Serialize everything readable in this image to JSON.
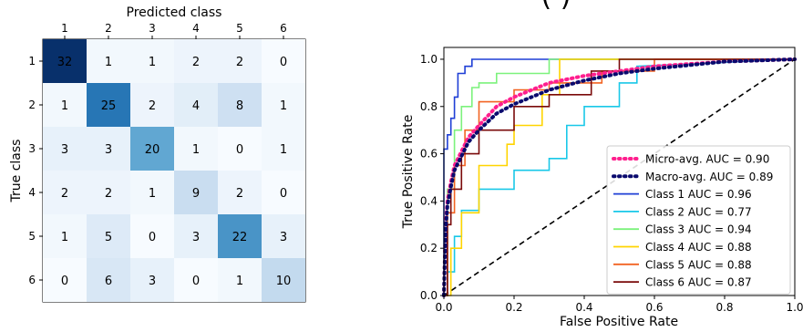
{
  "top_partial_title": "(                    )",
  "chart_data": [
    {
      "type": "heatmap",
      "title": "Predicted class",
      "xlabel": "Predicted class",
      "ylabel": "True class",
      "x_ticks": [
        "1",
        "2",
        "3",
        "4",
        "5",
        "6"
      ],
      "y_ticks": [
        "1",
        "2",
        "3",
        "4",
        "5",
        "6"
      ],
      "colormap": "Blues",
      "matrix": [
        [
          32,
          1,
          1,
          2,
          2,
          0
        ],
        [
          1,
          25,
          2,
          4,
          8,
          1
        ],
        [
          3,
          3,
          20,
          1,
          0,
          1
        ],
        [
          2,
          2,
          1,
          9,
          2,
          0
        ],
        [
          1,
          5,
          0,
          3,
          22,
          3
        ],
        [
          0,
          6,
          3,
          0,
          1,
          10
        ]
      ],
      "vmax": 32
    },
    {
      "type": "line",
      "xlabel": "False Positive Rate",
      "ylabel": "True Positive Rate",
      "xlim": [
        0.0,
        1.0
      ],
      "ylim": [
        0.0,
        1.05
      ],
      "x_ticks": [
        "0.0",
        "0.2",
        "0.4",
        "0.6",
        "0.8",
        "1.0"
      ],
      "y_ticks": [
        "0.0",
        "0.2",
        "0.4",
        "0.6",
        "0.8",
        "1.0"
      ],
      "legend_position": "lower-right",
      "chance_line": {
        "x": [
          0,
          1
        ],
        "y": [
          0,
          1
        ],
        "color": "#000000",
        "dash": "dashed"
      },
      "series": [
        {
          "name": "Micro-avg. AUC = 0.90",
          "color": "#ff1f8e",
          "style": "dotted-thick",
          "x": [
            0,
            0.005,
            0.01,
            0.02,
            0.03,
            0.05,
            0.07,
            0.1,
            0.15,
            0.2,
            0.25,
            0.3,
            0.4,
            0.5,
            0.6,
            0.8,
            1.0
          ],
          "y": [
            0,
            0.3,
            0.4,
            0.48,
            0.55,
            0.61,
            0.67,
            0.72,
            0.8,
            0.84,
            0.87,
            0.9,
            0.93,
            0.95,
            0.97,
            0.99,
            1.0
          ]
        },
        {
          "name": "Macro-avg. AUC = 0.89",
          "color": "#0a0a6e",
          "style": "dotted-thick",
          "x": [
            0,
            0.005,
            0.01,
            0.02,
            0.03,
            0.05,
            0.07,
            0.1,
            0.15,
            0.2,
            0.25,
            0.3,
            0.4,
            0.5,
            0.6,
            0.8,
            1.0
          ],
          "y": [
            0,
            0.28,
            0.38,
            0.46,
            0.53,
            0.59,
            0.65,
            0.7,
            0.77,
            0.81,
            0.84,
            0.87,
            0.91,
            0.94,
            0.96,
            0.99,
            1.0
          ]
        },
        {
          "name": "Class 1 AUC = 0.96",
          "color": "#1f3fd6",
          "style": "solid",
          "x": [
            0,
            0,
            0.01,
            0.01,
            0.02,
            0.02,
            0.03,
            0.03,
            0.04,
            0.04,
            0.06,
            0.06,
            0.08,
            0.08,
            0.95,
            0.95,
            1.0
          ],
          "y": [
            0,
            0.62,
            0.62,
            0.68,
            0.68,
            0.75,
            0.75,
            0.84,
            0.84,
            0.94,
            0.94,
            0.97,
            0.97,
            1.0,
            1.0,
            1.0,
            1.0
          ]
        },
        {
          "name": "Class 2 AUC = 0.77",
          "color": "#19c8e8",
          "style": "solid",
          "x": [
            0,
            0.01,
            0.01,
            0.03,
            0.03,
            0.05,
            0.05,
            0.1,
            0.1,
            0.2,
            0.2,
            0.3,
            0.3,
            0.35,
            0.35,
            0.4,
            0.4,
            0.5,
            0.5,
            0.55,
            0.55,
            1.0
          ],
          "y": [
            0,
            0,
            0.1,
            0.1,
            0.25,
            0.25,
            0.36,
            0.36,
            0.45,
            0.45,
            0.53,
            0.53,
            0.58,
            0.58,
            0.72,
            0.72,
            0.8,
            0.8,
            0.9,
            0.9,
            0.97,
            1.0
          ]
        },
        {
          "name": "Class 3 AUC = 0.94",
          "color": "#7cf27c",
          "style": "solid",
          "x": [
            0,
            0.01,
            0.01,
            0.03,
            0.03,
            0.05,
            0.05,
            0.08,
            0.08,
            0.1,
            0.1,
            0.15,
            0.15,
            0.3,
            0.3,
            1.0
          ],
          "y": [
            0,
            0,
            0.45,
            0.45,
            0.7,
            0.7,
            0.8,
            0.8,
            0.88,
            0.88,
            0.9,
            0.9,
            0.94,
            0.94,
            1.0,
            1.0
          ]
        },
        {
          "name": "Class 4 AUC = 0.88",
          "color": "#ffd400",
          "style": "solid",
          "x": [
            0,
            0.02,
            0.02,
            0.05,
            0.05,
            0.1,
            0.1,
            0.18,
            0.18,
            0.2,
            0.2,
            0.28,
            0.28,
            0.33,
            0.33,
            1.0
          ],
          "y": [
            0,
            0,
            0.2,
            0.2,
            0.35,
            0.35,
            0.55,
            0.55,
            0.64,
            0.64,
            0.72,
            0.72,
            0.85,
            0.85,
            1.0,
            1.0
          ]
        },
        {
          "name": "Class 5 AUC = 0.88",
          "color": "#f26322",
          "style": "solid",
          "x": [
            0,
            0.01,
            0.01,
            0.03,
            0.03,
            0.06,
            0.06,
            0.1,
            0.1,
            0.2,
            0.2,
            0.3,
            0.3,
            0.45,
            0.45,
            0.6,
            0.6,
            1.0
          ],
          "y": [
            0,
            0,
            0.35,
            0.35,
            0.55,
            0.55,
            0.7,
            0.7,
            0.82,
            0.82,
            0.87,
            0.87,
            0.9,
            0.9,
            0.95,
            0.95,
            1.0,
            1.0
          ]
        },
        {
          "name": "Class 6 AUC = 0.87",
          "color": "#7a0a0a",
          "style": "solid",
          "x": [
            0,
            0.01,
            0.01,
            0.02,
            0.02,
            0.05,
            0.05,
            0.1,
            0.1,
            0.2,
            0.2,
            0.3,
            0.3,
            0.42,
            0.42,
            0.5,
            0.5,
            1.0
          ],
          "y": [
            0,
            0,
            0.3,
            0.3,
            0.45,
            0.45,
            0.6,
            0.6,
            0.7,
            0.7,
            0.8,
            0.8,
            0.85,
            0.85,
            0.95,
            0.95,
            1.0,
            1.0
          ]
        }
      ]
    }
  ]
}
